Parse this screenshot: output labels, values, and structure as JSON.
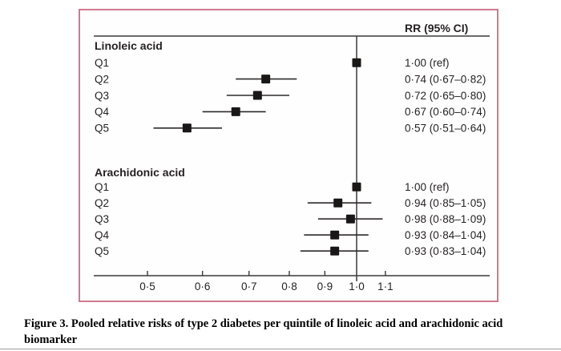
{
  "figure": {
    "panel_border_color": "#d2798f",
    "line_color": "#3a3a3a",
    "marker_color": "#1a1717",
    "text_color": "#262223"
  },
  "chart_data": {
    "type": "forest",
    "title": "",
    "xlabel": "",
    "ylabel": "",
    "x_scale": "log",
    "grid": false,
    "column_header": "RR (95% CI)",
    "reference_line": 1.0,
    "x_tick_values": [
      0.5,
      0.6,
      0.7,
      0.8,
      0.9,
      1.0,
      1.1
    ],
    "x_ticks": [
      "0·5",
      "0·6",
      "0·7",
      "0·8",
      "0·9",
      "1·0",
      "1·1"
    ],
    "xlim": [
      0.42,
      1.56
    ],
    "groups": [
      {
        "name": "Linoleic acid",
        "rows": [
          {
            "label": "Q1",
            "rr": 1.0,
            "lo": null,
            "hi": null,
            "text": "1·00 (ref)"
          },
          {
            "label": "Q2",
            "rr": 0.74,
            "lo": 0.67,
            "hi": 0.82,
            "text": "0·74 (0·67–0·82)"
          },
          {
            "label": "Q3",
            "rr": 0.72,
            "lo": 0.65,
            "hi": 0.8,
            "text": "0·72 (0·65–0·80)"
          },
          {
            "label": "Q4",
            "rr": 0.67,
            "lo": 0.6,
            "hi": 0.74,
            "text": "0·67 (0·60–0·74)"
          },
          {
            "label": "Q5",
            "rr": 0.57,
            "lo": 0.51,
            "hi": 0.64,
            "text": "0·57 (0·51–0·64)"
          }
        ]
      },
      {
        "name": "Arachidonic acid",
        "rows": [
          {
            "label": "Q1",
            "rr": 1.0,
            "lo": null,
            "hi": null,
            "text": "1·00 (ref)"
          },
          {
            "label": "Q2",
            "rr": 0.94,
            "lo": 0.85,
            "hi": 1.05,
            "text": "0·94 (0·85–1·05)"
          },
          {
            "label": "Q3",
            "rr": 0.98,
            "lo": 0.88,
            "hi": 1.09,
            "text": "0·98 (0·88–1·09)"
          },
          {
            "label": "Q4",
            "rr": 0.93,
            "lo": 0.84,
            "hi": 1.04,
            "text": "0·93 (0·84–1·04)"
          },
          {
            "label": "Q5",
            "rr": 0.93,
            "lo": 0.83,
            "hi": 1.04,
            "text": "0·93 (0·83–1·04)"
          }
        ]
      }
    ]
  },
  "caption": {
    "line1": "Figure 3. Pooled relative risks of type 2 diabetes per quintile of linoleic acid and arachidonic acid",
    "line2": "biomarker"
  }
}
